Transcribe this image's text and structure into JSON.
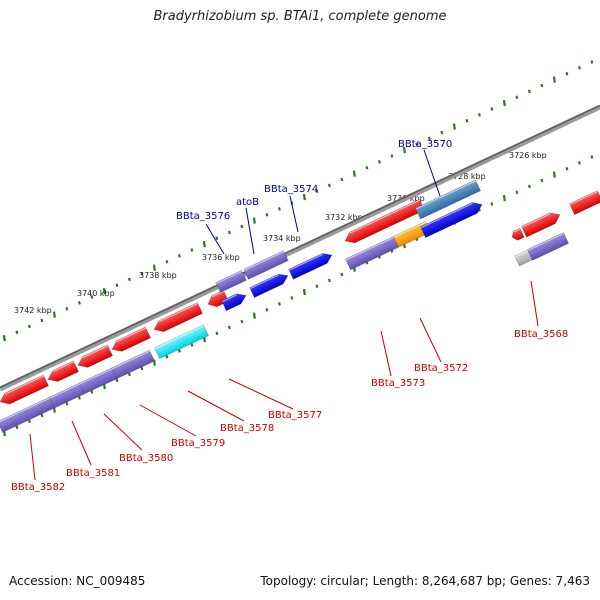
{
  "title": "Bradyrhizobium sp. BTAi1, complete genome",
  "footer": {
    "accession": "Accession: NC_009485",
    "summary": "Topology: circular; Length: 8,264,687 bp; Genes: 7,463"
  },
  "colors": {
    "axis": "#7a7a7a",
    "tick": "#2a7a1a",
    "gene_label_red": "#cc0000",
    "gene_label_blue": "#000099",
    "forward_gene": "#0000ee",
    "reverse_gene": "#ee0000",
    "cds_band": "#7b68c8",
    "alt_cyan": "#00e5f0",
    "alt_orange": "#ff9900",
    "alt_steel": "#3f7fb5",
    "alt_grey": "#c0c0c0"
  },
  "scale_labels": [
    "3726 kbp",
    "3728 kbp",
    "3730 kbp",
    "3732 kbp",
    "3734 kbp",
    "3736 kbp",
    "3738 kbp",
    "3740 kbp",
    "3742 kbp"
  ],
  "gene_labels_top": [
    "BBta_3570",
    "BBta_3574",
    "atoB",
    "BBta_3576"
  ],
  "gene_labels_bottom": [
    "BBta_3568",
    "BBta_3572",
    "BBta_3573",
    "BBta_3577",
    "BBta_3578",
    "BBta_3579",
    "BBta_3580",
    "BBta_3581",
    "BBta_3582"
  ]
}
